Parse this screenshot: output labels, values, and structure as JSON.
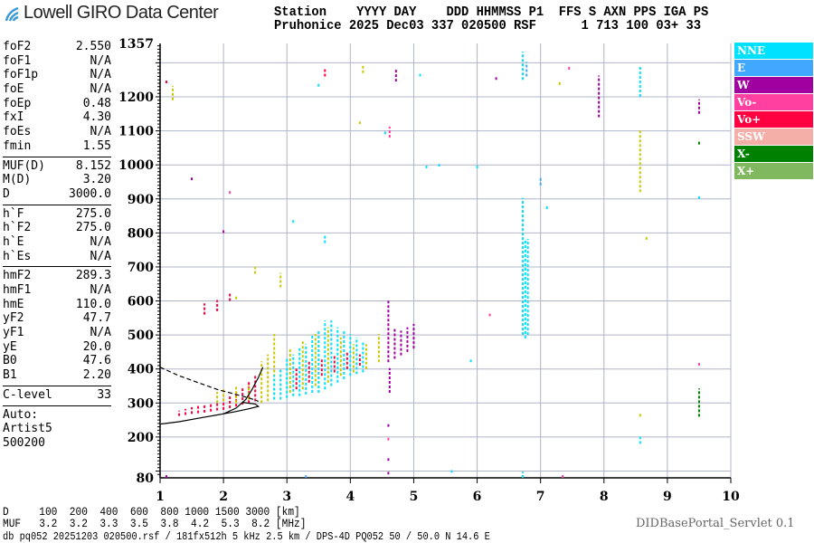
{
  "logo": {
    "text": "Lowell GIRO Data Center"
  },
  "header": {
    "line1": "Station    YYYY DAY    DDD HHMMSS P1  FFS S AXN PPS IGA PS",
    "line2": "Pruhonice 2025 Dec03 337 020500 RSF      1 713 100 03+ 33"
  },
  "params": {
    "group1": [
      [
        "foF2",
        "2.550"
      ],
      [
        "foF1",
        "N/A"
      ],
      [
        "foF1p",
        "N/A"
      ],
      [
        "foE",
        "N/A"
      ],
      [
        "foEp",
        "0.48"
      ],
      [
        "fxI",
        "4.30"
      ],
      [
        "foEs",
        "N/A"
      ],
      [
        "fmin",
        "1.55"
      ]
    ],
    "group2": [
      [
        "MUF(D)",
        "8.152"
      ],
      [
        "M(D)",
        "3.20"
      ],
      [
        "D",
        "3000.0"
      ]
    ],
    "group3": [
      [
        "h`F",
        "275.0"
      ],
      [
        "h`F2",
        "275.0"
      ],
      [
        "h`E",
        "N/A"
      ],
      [
        "h`Es",
        "N/A"
      ]
    ],
    "group4": [
      [
        "hmF2",
        "289.3"
      ],
      [
        "hmF1",
        "N/A"
      ],
      [
        "hmE",
        "110.0"
      ],
      [
        "yF2",
        "47.7"
      ],
      [
        "yF1",
        "N/A"
      ],
      [
        "yE",
        "20.0"
      ],
      [
        "B0",
        "47.6"
      ],
      [
        "B1",
        "2.20"
      ]
    ],
    "group5": [
      [
        "C-level",
        "33"
      ]
    ],
    "auto": [
      "Auto:",
      "Artist5",
      "500200"
    ]
  },
  "legend": [
    {
      "label": "NNE",
      "color": "#00e0ff"
    },
    {
      "label": "E",
      "color": "#40a8ff"
    },
    {
      "label": "W",
      "color": "#a000a0"
    },
    {
      "label": "Vo-",
      "color": "#ff40a0"
    },
    {
      "label": "Vo+",
      "color": "#ff0040"
    },
    {
      "label": "SSW",
      "color": "#f4b0a8"
    },
    {
      "label": "X-",
      "color": "#008000"
    },
    {
      "label": "X+",
      "color": "#80b860"
    }
  ],
  "bottom": {
    "d_row": "D     100  200  400  600  800 1000 1500 3000 [km]",
    "muf_row": "MUF   3.2  3.2  3.3  3.5  3.8  4.2  5.3  8.2 [MHz]",
    "footer": "db pq052 20251203 020500.rsf / 181fx512h 5 kHz 2.5 km / DPS-4D PQ052 50 / 50.0 N 14.6 E",
    "servlet": "DIDBasePortal_Servlet 0.1"
  },
  "chart_data": {
    "type": "scatter",
    "xlim": [
      1,
      10
    ],
    "ylim": [
      80,
      1357
    ],
    "x_ticks": [
      "1",
      "2",
      "3",
      "4",
      "5",
      "6",
      "7",
      "8",
      "9",
      "10"
    ],
    "y_ticks": [
      "1357",
      "1200",
      "1100",
      "1000",
      "900",
      "800",
      "700",
      "600",
      "500",
      "400",
      "300",
      "200",
      "80"
    ],
    "grid": true,
    "other_color": "#c8c800",
    "echoes": [
      [
        1.3,
        262,
        275,
        "Vo+"
      ],
      [
        1.4,
        265,
        280,
        "Vo+"
      ],
      [
        1.5,
        268,
        285,
        "Vo+"
      ],
      [
        1.6,
        270,
        290,
        "Vo+"
      ],
      [
        1.7,
        272,
        292,
        "Vo+"
      ],
      [
        1.8,
        275,
        295,
        "Vo+"
      ],
      [
        1.9,
        278,
        300,
        "Vo+"
      ],
      [
        2.0,
        280,
        305,
        "Vo+"
      ],
      [
        2.1,
        285,
        320,
        "Vo+"
      ],
      [
        2.2,
        290,
        330,
        "Vo+"
      ],
      [
        2.3,
        295,
        345,
        "Vo+"
      ],
      [
        2.4,
        300,
        360,
        "Vo+"
      ],
      [
        2.5,
        305,
        380,
        "Vo+"
      ],
      [
        1.9,
        300,
        330,
        "other"
      ],
      [
        2.0,
        305,
        340,
        "other"
      ],
      [
        2.2,
        300,
        345,
        "other"
      ],
      [
        2.4,
        310,
        350,
        "other"
      ],
      [
        2.6,
        300,
        420,
        "other"
      ],
      [
        2.7,
        305,
        440,
        "other"
      ],
      [
        2.8,
        310,
        500,
        "other"
      ],
      [
        2.8,
        310,
        380,
        "NNE"
      ],
      [
        2.9,
        310,
        400,
        "NNE"
      ],
      [
        3.0,
        315,
        430,
        "NNE"
      ],
      [
        3.1,
        320,
        440,
        "NNE"
      ],
      [
        3.2,
        320,
        460,
        "NNE"
      ],
      [
        3.3,
        325,
        470,
        "NNE"
      ],
      [
        3.4,
        330,
        500,
        "NNE"
      ],
      [
        3.5,
        330,
        510,
        "NNE"
      ],
      [
        3.6,
        340,
        540,
        "NNE"
      ],
      [
        3.7,
        350,
        540,
        "NNE"
      ],
      [
        3.8,
        360,
        520,
        "NNE"
      ],
      [
        3.9,
        370,
        510,
        "NNE"
      ],
      [
        4.0,
        380,
        500,
        "NNE"
      ],
      [
        4.1,
        385,
        490,
        "NNE"
      ],
      [
        4.2,
        390,
        480,
        "NNE"
      ],
      [
        3.05,
        330,
        460,
        "other"
      ],
      [
        3.25,
        340,
        480,
        "other"
      ],
      [
        3.45,
        350,
        500,
        "other"
      ],
      [
        3.65,
        360,
        520,
        "other"
      ],
      [
        3.85,
        380,
        490,
        "other"
      ],
      [
        4.05,
        390,
        470,
        "other"
      ],
      [
        4.25,
        400,
        470,
        "other"
      ],
      [
        4.45,
        420,
        500,
        "other"
      ],
      [
        3.15,
        340,
        400,
        "Vo+"
      ],
      [
        3.35,
        360,
        420,
        "Vo+"
      ],
      [
        3.55,
        380,
        430,
        "Vo+"
      ],
      [
        3.75,
        390,
        440,
        "Vo+"
      ],
      [
        3.95,
        400,
        450,
        "Vo+"
      ],
      [
        4.15,
        410,
        440,
        "Vo+"
      ],
      [
        4.6,
        420,
        600,
        "W"
      ],
      [
        4.7,
        430,
        520,
        "W"
      ],
      [
        4.8,
        440,
        510,
        "W"
      ],
      [
        4.9,
        450,
        520,
        "W"
      ],
      [
        5.0,
        460,
        530,
        "W"
      ],
      [
        4.62,
        330,
        400,
        "W"
      ],
      [
        4.62,
        1080,
        1110,
        "Vo-"
      ],
      [
        4.72,
        1245,
        1280,
        "W"
      ],
      [
        6.72,
        500,
        900,
        "NNE"
      ],
      [
        6.76,
        490,
        780,
        "NNE"
      ],
      [
        6.8,
        500,
        780,
        "NNE"
      ],
      [
        6.72,
        1250,
        1330,
        "NNE"
      ],
      [
        6.78,
        1260,
        1300,
        "E"
      ],
      [
        8.57,
        1200,
        1290,
        "NNE"
      ],
      [
        8.57,
        920,
        1100,
        "other"
      ],
      [
        8.57,
        180,
        200,
        "NNE"
      ],
      [
        8.57,
        260,
        270,
        "other"
      ],
      [
        7.92,
        1140,
        1260,
        "W"
      ],
      [
        9.5,
        1150,
        1190,
        "W"
      ],
      [
        9.5,
        1060,
        1070,
        "X-"
      ],
      [
        9.5,
        260,
        340,
        "X-"
      ],
      [
        9.5,
        410,
        415,
        "Vo-"
      ],
      [
        6.72,
        80,
        95,
        "NNE"
      ],
      [
        1.7,
        560,
        590,
        "Vo+"
      ],
      [
        1.9,
        570,
        600,
        "Vo+"
      ],
      [
        2.1,
        600,
        620,
        "Vo+"
      ],
      [
        2.2,
        605,
        615,
        "other"
      ],
      [
        2.5,
        680,
        700,
        "other"
      ],
      [
        2.9,
        640,
        680,
        "other"
      ],
      [
        3.6,
        770,
        790,
        "NNE"
      ],
      [
        1.1,
        1240,
        1245,
        "Vo+"
      ],
      [
        1.2,
        1190,
        1230,
        "other"
      ],
      [
        3.5,
        1230,
        1240,
        "NNE"
      ],
      [
        3.6,
        1260,
        1280,
        "Vo+"
      ],
      [
        4.2,
        1270,
        1290,
        "other"
      ],
      [
        5.1,
        1260,
        1265,
        "NNE"
      ],
      [
        6.3,
        1250,
        1255,
        "W"
      ],
      [
        7.3,
        1235,
        1245,
        "other"
      ],
      [
        7.45,
        1280,
        1290,
        "Vo-"
      ],
      [
        4.55,
        1090,
        1095,
        "NNE"
      ],
      [
        5.2,
        990,
        995,
        "NNE"
      ],
      [
        5.4,
        995,
        1000,
        "NNE"
      ],
      [
        6.0,
        990,
        995,
        "NNE"
      ],
      [
        7.0,
        940,
        960,
        "E"
      ],
      [
        7.1,
        870,
        880,
        "NNE"
      ],
      [
        8.67,
        780,
        790,
        "other"
      ],
      [
        9.5,
        900,
        905,
        "NNE"
      ],
      [
        1.5,
        955,
        960,
        "W"
      ],
      [
        2.0,
        800,
        805,
        "W"
      ],
      [
        2.1,
        915,
        920,
        "Vo-"
      ],
      [
        3.1,
        830,
        835,
        "NNE"
      ],
      [
        4.15,
        1120,
        1125,
        "other"
      ],
      [
        4.6,
        230,
        235,
        "W"
      ],
      [
        4.6,
        190,
        195,
        "Vo-"
      ],
      [
        4.6,
        130,
        135,
        "W"
      ],
      [
        4.6,
        90,
        95,
        "W"
      ],
      [
        3.3,
        80,
        85,
        "E"
      ],
      [
        5.6,
        95,
        100,
        "NNE"
      ],
      [
        7.35,
        80,
        90,
        "Vo-"
      ],
      [
        1.1,
        80,
        85,
        "W"
      ],
      [
        5.9,
        420,
        425,
        "NNE"
      ],
      [
        6.2,
        555,
        560,
        "Vo-"
      ]
    ],
    "traces": [
      {
        "style": "solid",
        "points": [
          [
            1.0,
            238
          ],
          [
            1.3,
            245
          ],
          [
            1.6,
            255
          ],
          [
            1.9,
            265
          ],
          [
            2.2,
            275
          ],
          [
            2.4,
            283
          ],
          [
            2.55,
            290
          ],
          [
            2.5,
            297
          ],
          [
            2.3,
            302
          ]
        ]
      },
      {
        "style": "solid",
        "points": [
          [
            2.0,
            268
          ],
          [
            2.2,
            285
          ],
          [
            2.35,
            310
          ],
          [
            2.45,
            340
          ],
          [
            2.55,
            375
          ],
          [
            2.62,
            405
          ]
        ]
      },
      {
        "style": "dashed",
        "points": [
          [
            1.0,
            405
          ],
          [
            1.3,
            380
          ],
          [
            1.6,
            360
          ],
          [
            1.9,
            340
          ],
          [
            2.2,
            325
          ],
          [
            2.4,
            315
          ],
          [
            2.55,
            305
          ]
        ]
      }
    ]
  }
}
